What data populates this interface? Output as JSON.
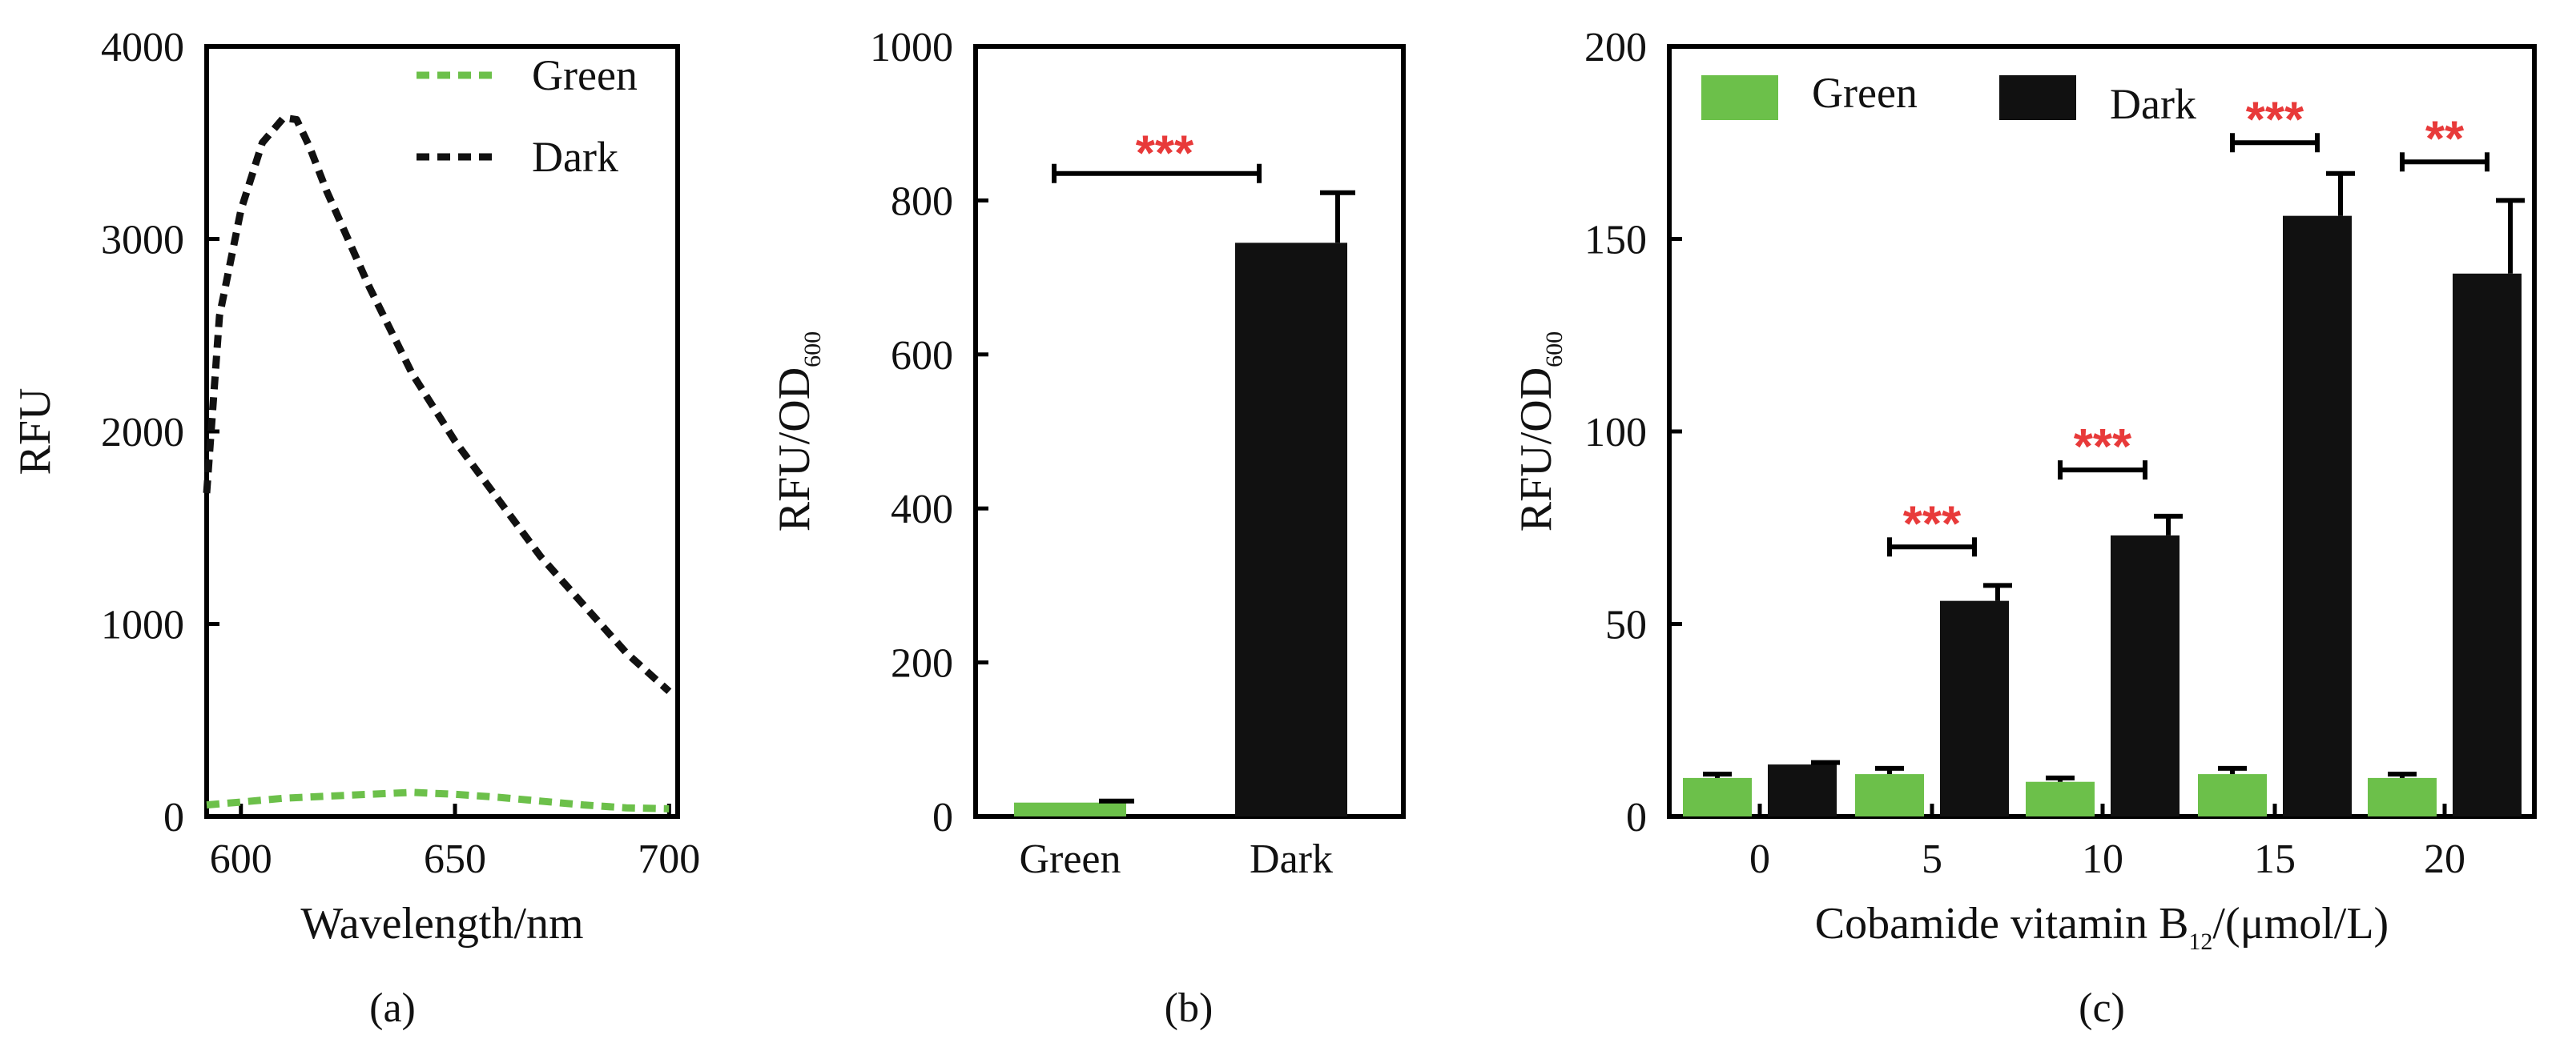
{
  "colors": {
    "green": "#6cc04a",
    "dark": "#111111",
    "sig": "#e83a3a"
  },
  "chart_data": [
    {
      "id": "a",
      "type": "line",
      "panel_label": "(a)",
      "xlabel": "Wavelength/nm",
      "ylabel": "RFU",
      "xlim": [
        592,
        702
      ],
      "ylim": [
        0,
        4000
      ],
      "xticks": [
        600,
        650,
        700
      ],
      "yticks": [
        0,
        1000,
        2000,
        3000,
        4000
      ],
      "legend": {
        "placement": "top-right"
      },
      "series": [
        {
          "name": "Green",
          "color_key": "green",
          "x": [
            592,
            600,
            610,
            620,
            630,
            640,
            650,
            660,
            670,
            680,
            690,
            700
          ],
          "y": [
            60,
            75,
            95,
            105,
            115,
            125,
            115,
            100,
            80,
            60,
            45,
            40
          ]
        },
        {
          "name": "Dark",
          "color_key": "dark",
          "x": [
            592,
            595,
            600,
            605,
            610,
            613,
            616,
            620,
            625,
            630,
            640,
            650,
            660,
            670,
            680,
            690,
            700
          ],
          "y": [
            1680,
            2600,
            3150,
            3500,
            3630,
            3620,
            3480,
            3250,
            3000,
            2750,
            2300,
            1950,
            1650,
            1350,
            1100,
            850,
            650
          ]
        }
      ]
    },
    {
      "id": "b",
      "type": "bar",
      "panel_label": "(b)",
      "ylabel_main": "RFU/OD",
      "ylabel_sub": "600",
      "ylim": [
        0,
        1000
      ],
      "yticks": [
        0,
        200,
        400,
        600,
        800,
        1000
      ],
      "categories": [
        "Green",
        "Dark"
      ],
      "values": [
        18,
        745
      ],
      "errors": [
        2,
        65
      ],
      "color_keys": [
        "green",
        "dark"
      ],
      "significance": [
        {
          "from": 0,
          "to": 1,
          "at": 835,
          "label": "***"
        }
      ]
    },
    {
      "id": "c",
      "type": "bar",
      "panel_label": "(c)",
      "xlabel_main": "Cobamide vitamin B",
      "xlabel_sub": "12",
      "xlabel_tail": "/(μmol/L)",
      "ylabel_main": "RFU/OD",
      "ylabel_sub": "600",
      "ylim": [
        0,
        200
      ],
      "yticks": [
        0,
        50,
        100,
        150,
        200
      ],
      "categories": [
        "0",
        "5",
        "10",
        "15",
        "20"
      ],
      "legend": {
        "placement": "top-left"
      },
      "series": [
        {
          "name": "Green",
          "color_key": "green",
          "values": [
            10,
            11,
            9,
            11,
            10
          ],
          "errors": [
            1,
            1.5,
            1,
            1.5,
            1
          ]
        },
        {
          "name": "Dark",
          "color_key": "dark",
          "values": [
            13.5,
            56,
            73,
            156,
            141
          ],
          "errors": [
            0.5,
            4,
            5,
            11,
            19
          ]
        }
      ],
      "significance": [
        {
          "group": 1,
          "at": 70,
          "label": "***"
        },
        {
          "group": 2,
          "at": 90,
          "label": "***"
        },
        {
          "group": 3,
          "at": 175,
          "label": "***"
        },
        {
          "group": 4,
          "at": 170,
          "label": "**"
        }
      ]
    }
  ]
}
